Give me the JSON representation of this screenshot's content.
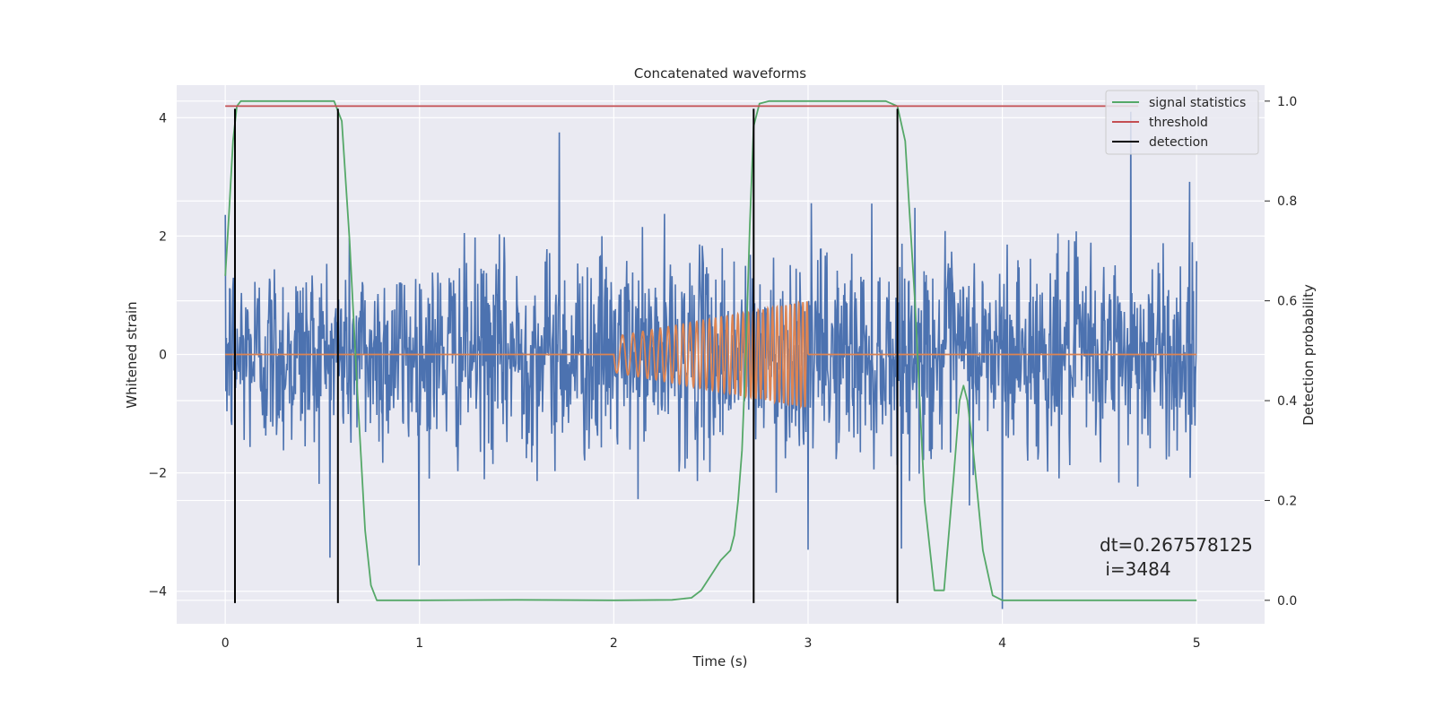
{
  "chart_data": {
    "type": "line",
    "title": "Concatenated waveforms",
    "xlabel": "Time (s)",
    "ylabel": "Whitened strain",
    "y2label": "Detection probability",
    "xlim": [
      -0.25,
      5.35
    ],
    "ylim": [
      -4.55,
      4.55
    ],
    "y2lim": [
      -0.047,
      1.032
    ],
    "xticks": [
      0,
      1,
      2,
      3,
      4,
      5
    ],
    "yticks": [
      -4,
      -2,
      0,
      2,
      4
    ],
    "y2ticks": [
      0.0,
      0.2,
      0.4,
      0.6,
      0.8,
      1.0
    ],
    "grid": true,
    "legend_position": "top-right",
    "series": [
      {
        "name": "",
        "axis": "left",
        "color": "#4c72b0",
        "description": "whitened noisy strain",
        "x_range": [
          0,
          5
        ],
        "amplitude_std": 0.85,
        "spikes_at": [
          1.72,
          3.0,
          4.0,
          4.66
        ],
        "spike_values": [
          3.75,
          -3.3,
          -4.3,
          4.1
        ]
      },
      {
        "name": "",
        "axis": "left",
        "color": "#dd8452",
        "description": "injected chirp signal",
        "x_range": [
          2.0,
          3.0
        ],
        "amplitude_start": 0.3,
        "amplitude_end": 0.9
      },
      {
        "name": "signal statistics",
        "axis": "right",
        "color": "#55a868",
        "x": [
          0.0,
          0.02,
          0.04,
          0.06,
          0.08,
          0.1,
          0.15,
          0.5,
          0.56,
          0.6,
          0.64,
          0.68,
          0.72,
          0.75,
          0.78,
          1.0,
          1.5,
          2.0,
          2.3,
          2.4,
          2.45,
          2.5,
          2.55,
          2.6,
          2.62,
          2.64,
          2.66,
          2.68,
          2.7,
          2.72,
          2.75,
          2.8,
          3.4,
          3.46,
          3.5,
          3.55,
          3.6,
          3.65,
          3.7,
          3.75,
          3.78,
          3.8,
          3.82,
          3.85,
          3.9,
          3.95,
          4.0,
          4.5,
          5.0
        ],
        "y": [
          0.65,
          0.78,
          0.92,
          0.99,
          1.0,
          1.0,
          1.0,
          1.0,
          1.0,
          0.96,
          0.72,
          0.42,
          0.14,
          0.03,
          0.0,
          0.0,
          0.001,
          0.0,
          0.001,
          0.005,
          0.02,
          0.05,
          0.08,
          0.1,
          0.13,
          0.2,
          0.3,
          0.5,
          0.75,
          0.95,
          0.995,
          1.0,
          1.0,
          0.99,
          0.92,
          0.6,
          0.2,
          0.02,
          0.02,
          0.25,
          0.4,
          0.43,
          0.4,
          0.3,
          0.1,
          0.01,
          0.0,
          0.0,
          0.0
        ]
      },
      {
        "name": "threshold",
        "axis": "right",
        "color": "#c44e52",
        "x": [
          0,
          4.7
        ],
        "y": [
          0.99,
          0.99
        ]
      },
      {
        "name": "detection",
        "axis": "left",
        "color": "#000000",
        "type": "vlines",
        "x": [
          0.05,
          0.58,
          2.72,
          3.46
        ],
        "ymin": -4.2,
        "ymax": 4.15
      }
    ],
    "annotation": {
      "line1": "dt=0.267578125",
      "line2": " i=3484"
    }
  }
}
